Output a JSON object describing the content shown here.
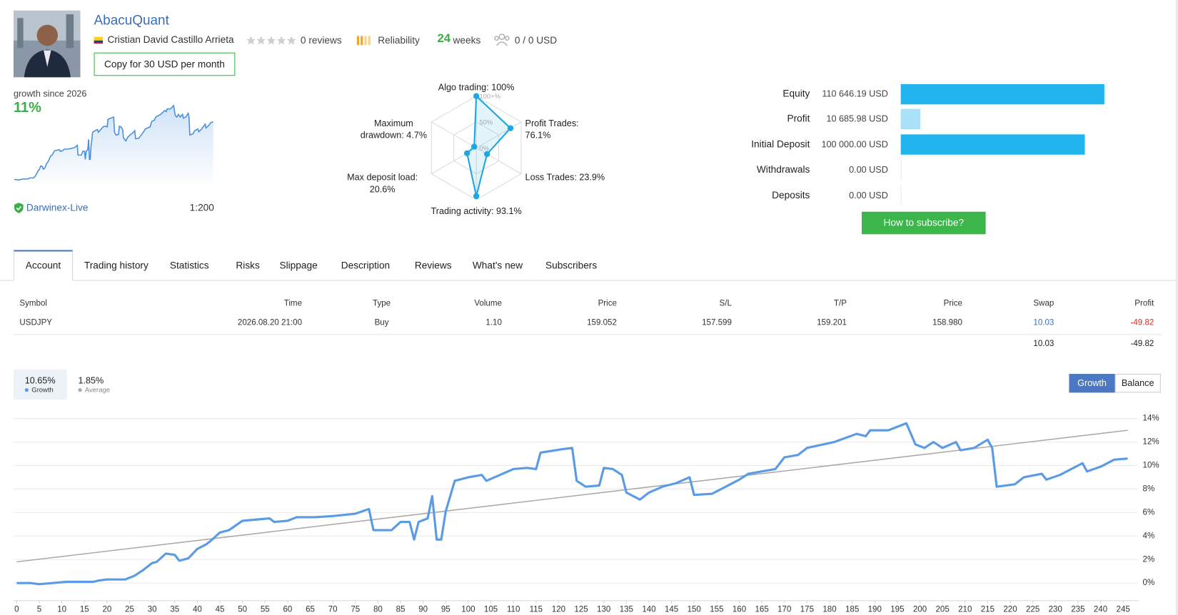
{
  "header": {
    "name": "AbacuQuant",
    "author": "Cristian David Castillo Arrieta",
    "reviews": "0 reviews",
    "reliability": "Reliability",
    "weeks": "24",
    "weeks_label": "weeks",
    "subscribers": "0 / 0 USD",
    "copy_button": "Copy for 30 USD per month"
  },
  "growth_summary": {
    "label": "growth since 2026",
    "value": "11%",
    "broker": "Darwinex-Live",
    "leverage": "1:200"
  },
  "radar": {
    "type": "radar",
    "rlim": [
      0,
      100
    ],
    "rticks": [
      {
        "value": 0,
        "label": "0%"
      },
      {
        "value": 50,
        "label": "50%"
      },
      {
        "value": 100,
        "label": "100+%"
      }
    ],
    "color": "#1ea7e1",
    "axes": [
      {
        "label": "Algo trading: 100%",
        "value": 100
      },
      {
        "label": "Profit Trades:\n76.1%",
        "value": 76.1
      },
      {
        "label": "Loss Trades: 23.9%",
        "value": 23.9
      },
      {
        "label": "Trading activity: 93.1%",
        "value": 93.1
      },
      {
        "label": "Max deposit load:\n20.6%",
        "value": 20.6
      },
      {
        "label": "Maximum\ndrawdown: 4.7%",
        "value": 4.7
      }
    ]
  },
  "account": {
    "rows": [
      {
        "label": "Equity",
        "value": 110646.19,
        "value_label": "110 646.19 USD",
        "color": "#22b4ef"
      },
      {
        "label": "Profit",
        "value": 10685.98,
        "value_label": "10 685.98 USD",
        "color": "#a8e1f8"
      },
      {
        "label": "Initial Deposit",
        "value": 100000.0,
        "value_label": "100 000.00 USD",
        "color": "#22b4ef"
      },
      {
        "label": "Withdrawals",
        "value": 0.0,
        "value_label": "0.00 USD",
        "color": "#22b4ef"
      },
      {
        "label": "Deposits",
        "value": 0.0,
        "value_label": "0.00 USD",
        "color": "#22b4ef"
      }
    ]
  },
  "subscribe_button": "How to subscribe?",
  "tabs": [
    "Account",
    "Trading history",
    "Statistics",
    "Risks",
    "Slippage",
    "Description",
    "Reviews",
    "What's new",
    "Subscribers"
  ],
  "table": {
    "headers": [
      "Symbol",
      "Time",
      "Type",
      "Volume",
      "Price",
      "S/L",
      "T/P",
      "Price",
      "Swap",
      "Profit"
    ],
    "rows": [
      [
        "USDJPY",
        "2026.08.20 21:00",
        "Buy",
        "1.10",
        "159.052",
        "157.599",
        "159.201",
        "158.980",
        "10.03",
        "-49.82"
      ]
    ],
    "totals": [
      "10.03",
      "-49.82"
    ]
  },
  "chart_data": {
    "type": "line",
    "buttons": [
      "Growth",
      "Balance"
    ],
    "xlim": [
      -0.7,
      247
    ],
    "ylim": [
      -1.5,
      14.8
    ],
    "xticks": [
      0,
      5,
      10,
      15,
      20,
      25,
      30,
      35,
      40,
      45,
      50,
      55,
      60,
      65,
      70,
      75,
      80,
      85,
      90,
      95,
      100,
      105,
      110,
      115,
      120,
      125,
      130,
      135,
      140,
      145,
      150,
      155,
      160,
      165,
      170,
      175,
      180,
      185,
      190,
      195,
      200,
      205,
      210,
      215,
      220,
      225,
      230,
      235,
      240,
      245
    ],
    "yticks": [
      {
        "value": 0,
        "label": "0%"
      },
      {
        "value": 2,
        "label": "2%"
      },
      {
        "value": 4,
        "label": "4%"
      },
      {
        "value": 6,
        "label": "6%"
      },
      {
        "value": 8,
        "label": "8%"
      },
      {
        "value": 10,
        "label": "10%"
      },
      {
        "value": 12,
        "label": "12%"
      },
      {
        "value": 14,
        "label": "14%"
      }
    ],
    "grid": true,
    "series": [
      {
        "name": "Growth",
        "summary": "10.65%",
        "color": "#5b9be6",
        "x": [
          0,
          3,
          5,
          8,
          11,
          17,
          18,
          20,
          24,
          26,
          28,
          30,
          31,
          33,
          35,
          36,
          38,
          40,
          42,
          43,
          45,
          47,
          50,
          53,
          56,
          57,
          60,
          62,
          66,
          70,
          75,
          78,
          79,
          83,
          85,
          87,
          88,
          89,
          91,
          92,
          93,
          94,
          95,
          97,
          100,
          103,
          104,
          107,
          110,
          113,
          115,
          116,
          121,
          123,
          124,
          126,
          129,
          130,
          132,
          134,
          135,
          138,
          140,
          143,
          146,
          149,
          150,
          154,
          156,
          160,
          162,
          168,
          170,
          173,
          175,
          181,
          186,
          188,
          189,
          193,
          197,
          199,
          201,
          203,
          205,
          208,
          209,
          212,
          215,
          216,
          217,
          221,
          223,
          227,
          228,
          231,
          236,
          237,
          240,
          243,
          246
        ],
        "values": [
          0.0,
          0.0,
          -0.1,
          0.0,
          0.1,
          0.1,
          0.2,
          0.3,
          0.3,
          0.6,
          1.1,
          1.7,
          1.8,
          2.5,
          2.4,
          1.9,
          2.1,
          2.9,
          3.3,
          3.6,
          4.3,
          4.5,
          5.3,
          5.4,
          5.5,
          5.2,
          5.3,
          5.6,
          5.6,
          5.7,
          5.9,
          6.3,
          4.5,
          4.5,
          5.2,
          5.2,
          3.7,
          5.2,
          5.5,
          7.4,
          3.7,
          3.7,
          6.1,
          8.7,
          9.0,
          9.2,
          8.7,
          9.2,
          9.7,
          9.8,
          9.7,
          11.1,
          11.4,
          11.5,
          8.7,
          8.2,
          8.3,
          9.8,
          9.7,
          9.2,
          7.7,
          7.1,
          7.7,
          8.2,
          8.5,
          9.0,
          7.5,
          7.6,
          8.0,
          8.8,
          9.3,
          9.7,
          10.7,
          10.9,
          11.5,
          12.0,
          12.7,
          12.5,
          13.0,
          13.0,
          13.6,
          11.8,
          11.5,
          12.0,
          11.5,
          12.0,
          11.3,
          11.5,
          12.2,
          11.5,
          8.2,
          8.4,
          9.0,
          9.3,
          8.8,
          9.2,
          10.2,
          9.5,
          9.9,
          10.5,
          10.6
        ]
      },
      {
        "name": "Average",
        "summary": "1.85%",
        "color": "#aaaaaa",
        "x": [
          0,
          246
        ],
        "values": [
          1.8,
          13.0
        ]
      }
    ]
  }
}
